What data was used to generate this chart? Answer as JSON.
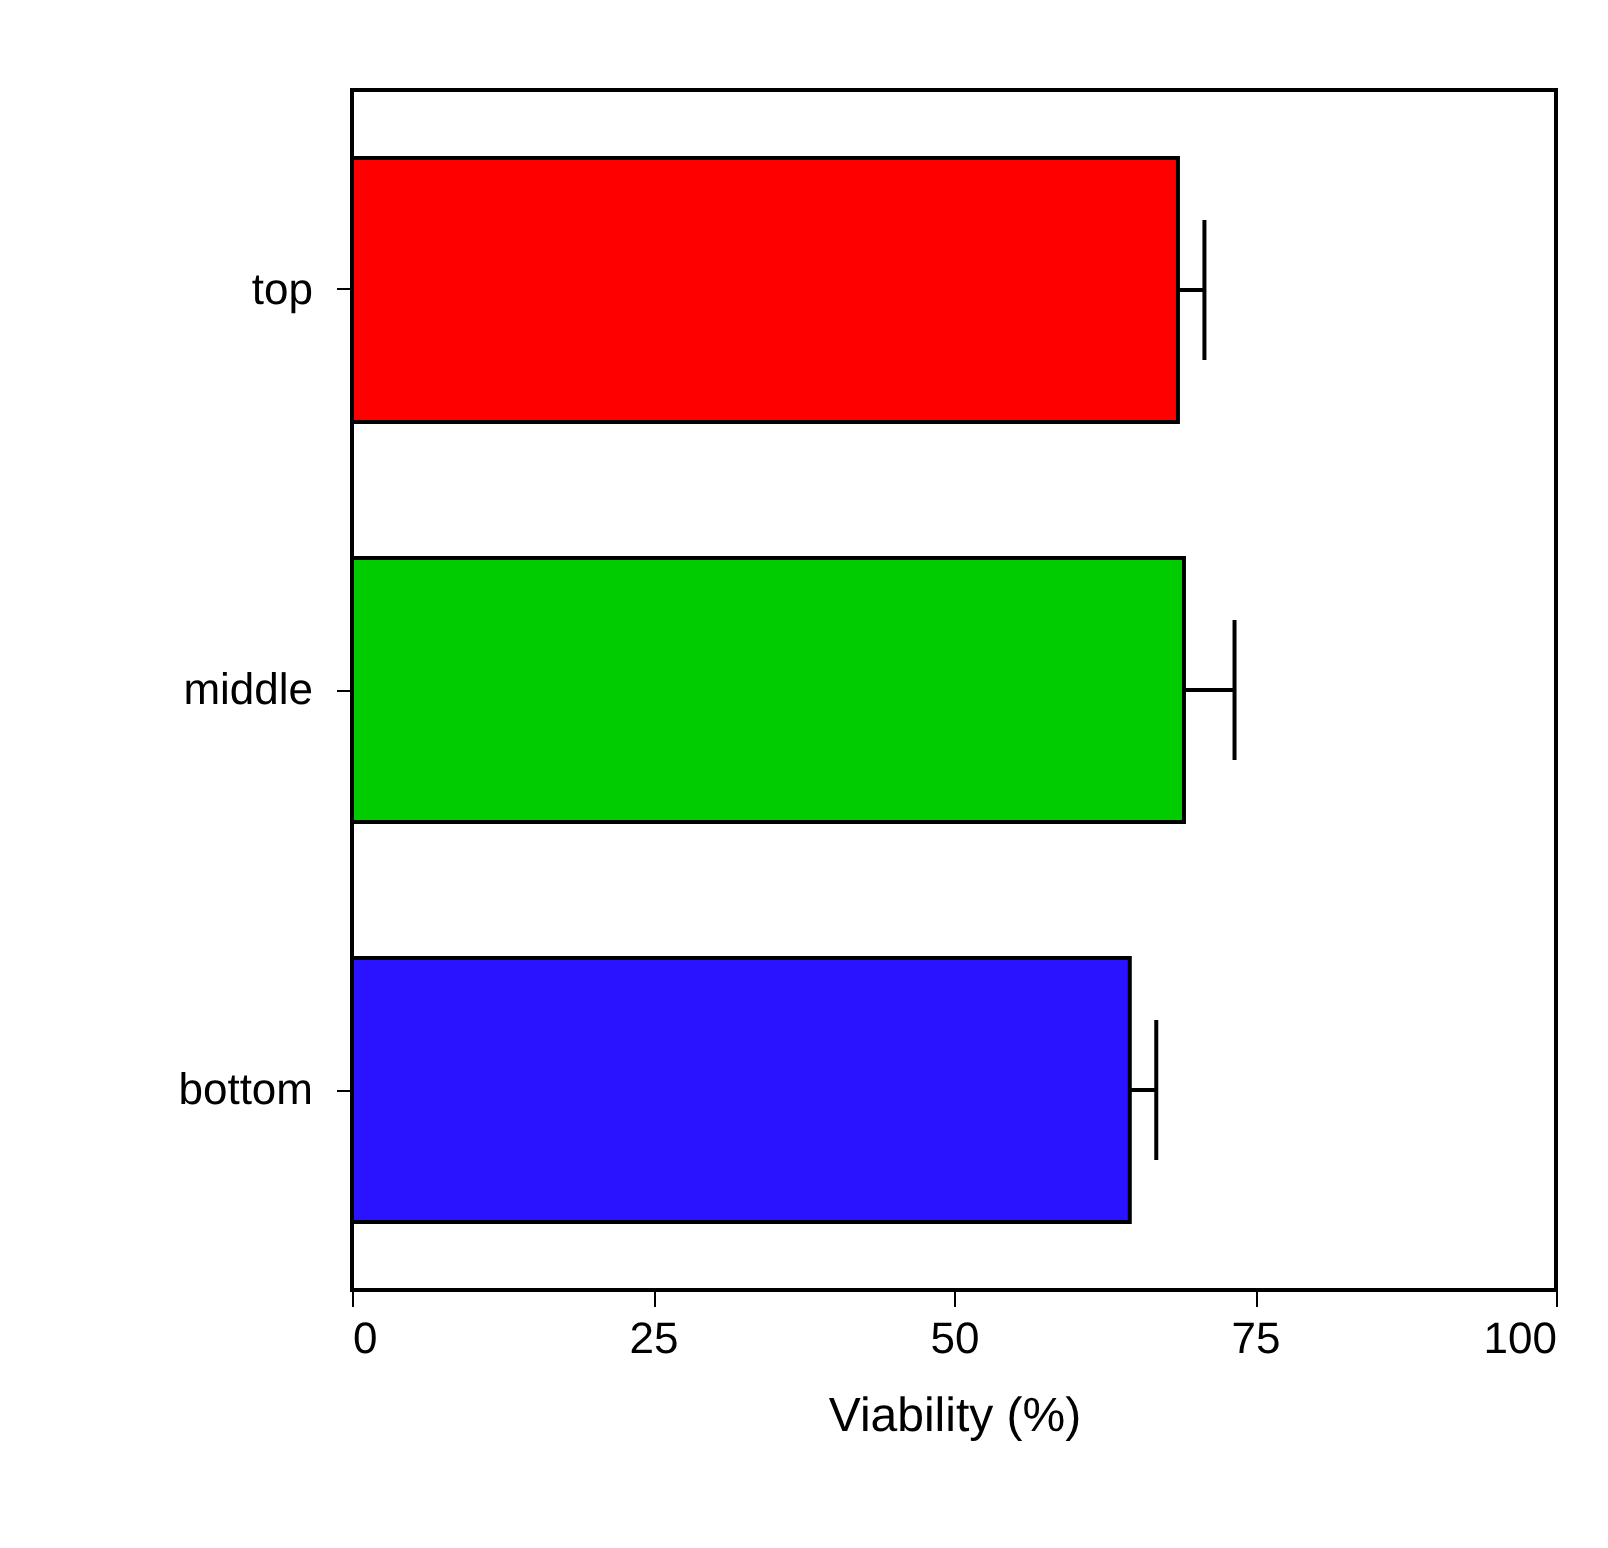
{
  "chart_data": {
    "type": "bar",
    "orientation": "horizontal",
    "xlabel": "Viability (%)",
    "categories": [
      "top",
      "middle",
      "bottom"
    ],
    "values": [
      68.6,
      69.1,
      64.6
    ],
    "colors": [
      "#ff0000",
      "#00cc00",
      "#2a14ff"
    ],
    "errors": [
      [
        68.6,
        70.8
      ],
      [
        69.1,
        73.3
      ],
      [
        64.6,
        66.8
      ]
    ],
    "xlim": [
      0,
      100
    ],
    "xticks": [
      0,
      25,
      50,
      75,
      100
    ],
    "grid": false
  }
}
